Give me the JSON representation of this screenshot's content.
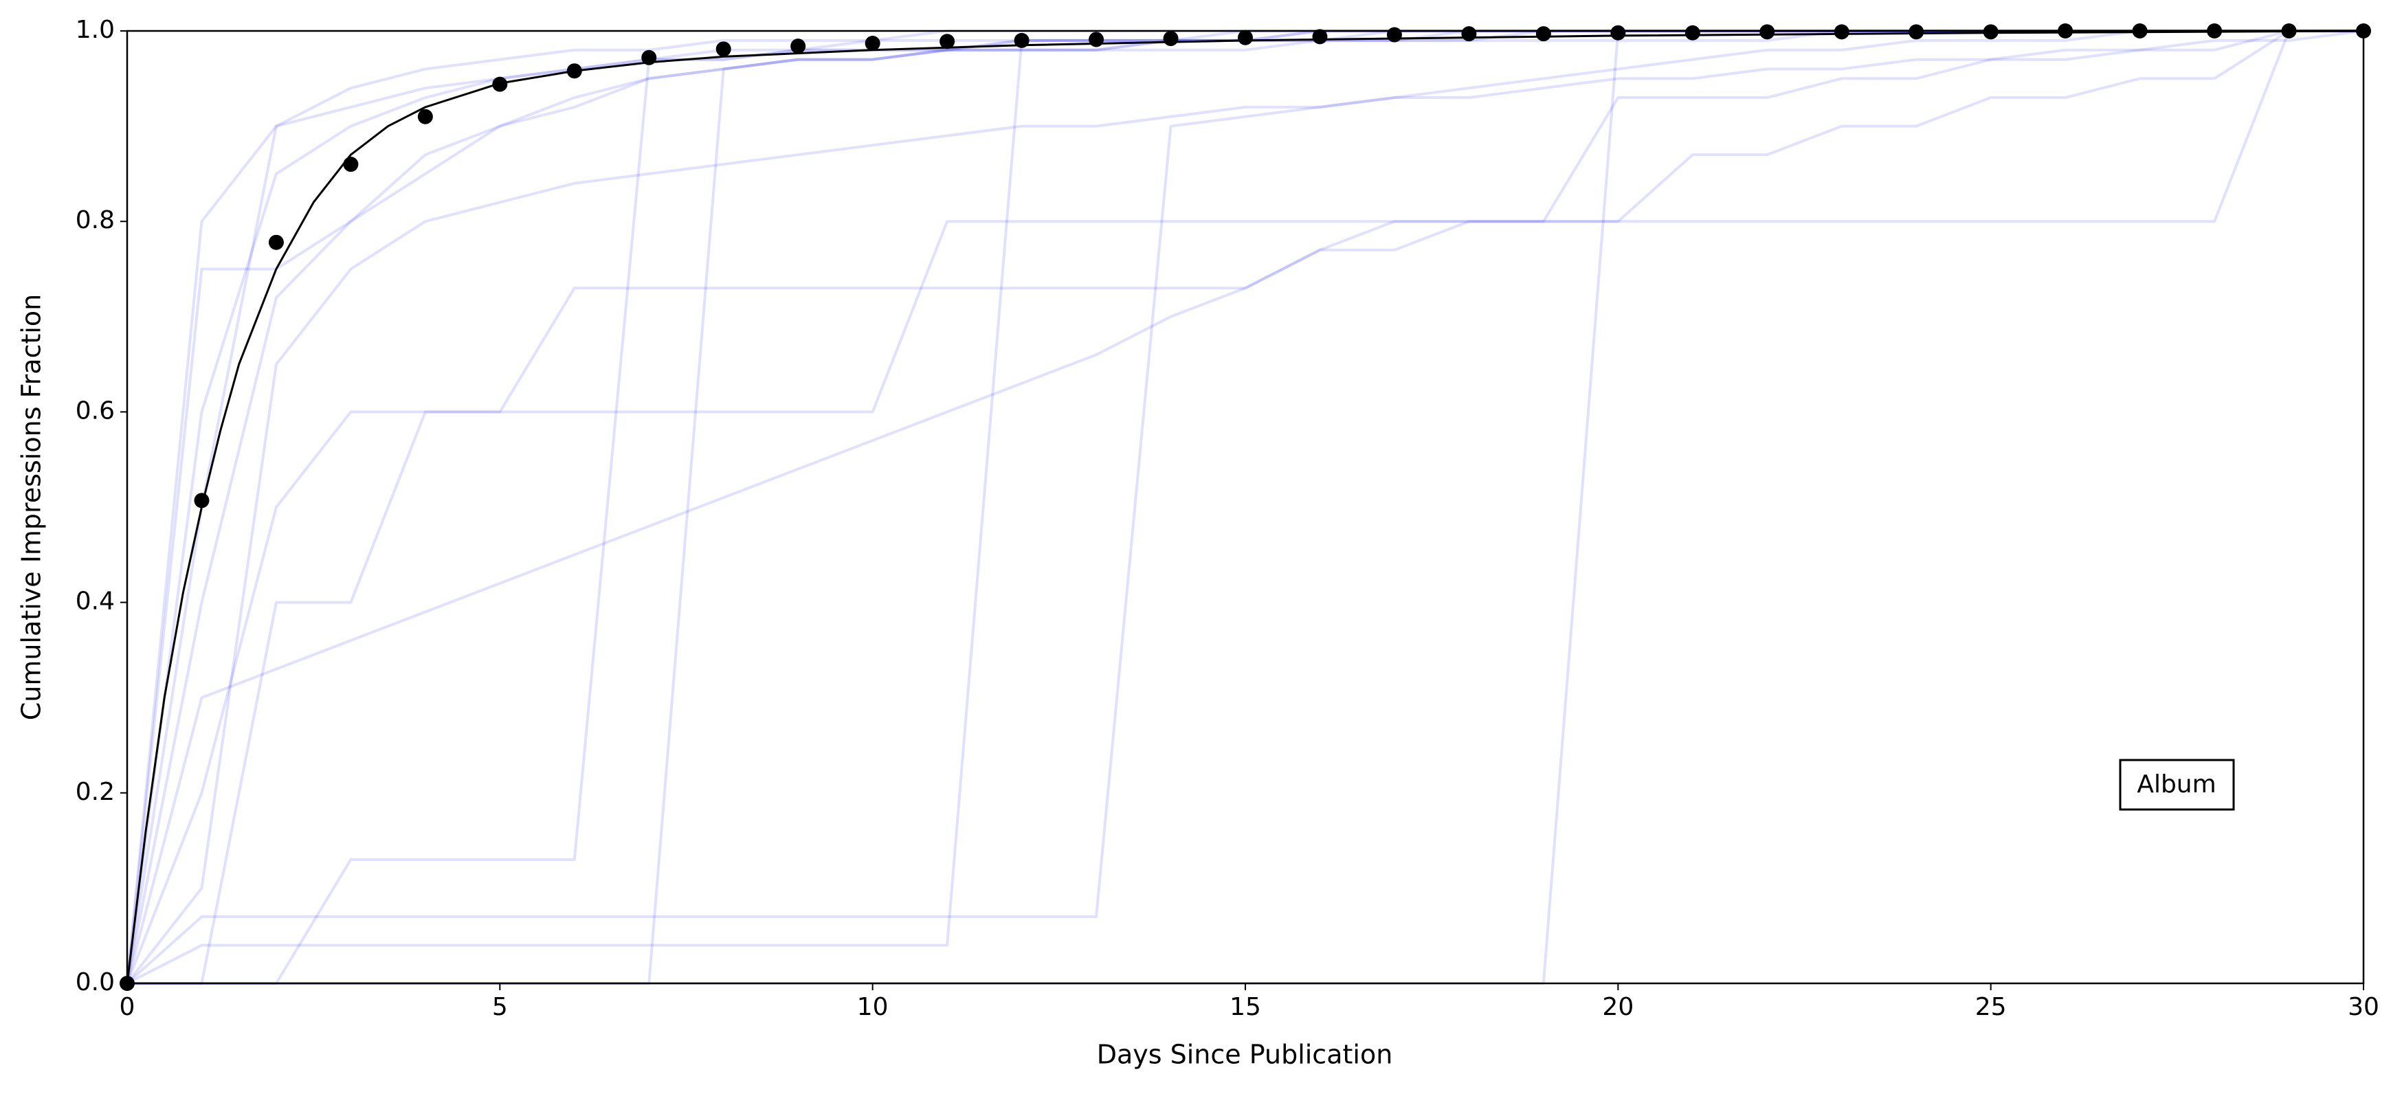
{
  "chart_data": {
    "type": "line",
    "xlabel": "Days Since Publication",
    "ylabel": "Cumulative Impressions Fraction",
    "annotation": "Album",
    "xlim": [
      0,
      30
    ],
    "ylim": [
      0,
      1
    ],
    "xticks": [
      0,
      5,
      10,
      15,
      20,
      25,
      30
    ],
    "yticks": [
      {
        "value": 0,
        "label": "0.0"
      },
      {
        "value": 0.2,
        "label": "0.2"
      },
      {
        "value": 0.4,
        "label": "0.4"
      },
      {
        "value": 0.6,
        "label": "0.6"
      },
      {
        "value": 0.8,
        "label": "0.8"
      },
      {
        "value": 1,
        "label": "1.0"
      }
    ],
    "x": [
      0,
      1,
      2,
      3,
      4,
      5,
      6,
      7,
      8,
      9,
      10,
      11,
      12,
      13,
      14,
      15,
      16,
      17,
      18,
      19,
      20,
      21,
      22,
      23,
      24,
      25,
      26,
      27,
      28,
      29,
      30
    ],
    "series": [
      {
        "color": "#0000ff",
        "opacity": 0.12,
        "style": "line",
        "values": [
          0,
          0.75,
          0.75,
          0.8,
          0.85,
          0.9,
          0.92,
          0.95,
          0.96,
          0.97,
          0.97,
          0.98,
          0.98,
          0.98,
          0.99,
          0.99,
          0.99,
          0.99,
          1,
          1,
          1,
          1,
          1,
          1,
          1,
          1,
          1,
          1,
          1,
          1,
          1
        ]
      },
      {
        "color": "#0000ff",
        "opacity": 0.12,
        "style": "line",
        "values": [
          0,
          0.6,
          0.85,
          0.9,
          0.93,
          0.95,
          0.96,
          0.97,
          0.98,
          0.98,
          0.99,
          0.99,
          0.99,
          0.99,
          0.99,
          1,
          1,
          1,
          1,
          1,
          1,
          1,
          1,
          1,
          1,
          1,
          1,
          1,
          1,
          1,
          1
        ]
      },
      {
        "color": "#0000ff",
        "opacity": 0.12,
        "style": "line",
        "values": [
          0,
          0.4,
          0.72,
          0.8,
          0.87,
          0.9,
          0.93,
          0.95,
          0.96,
          0.97,
          0.97,
          0.98,
          0.98,
          0.98,
          0.98,
          0.98,
          0.99,
          0.99,
          0.99,
          0.99,
          0.99,
          0.99,
          0.99,
          1,
          1,
          1,
          1,
          1,
          1,
          1,
          1
        ]
      },
      {
        "color": "#0000ff",
        "opacity": 0.12,
        "style": "line",
        "values": [
          0,
          0.3,
          0.33,
          0.36,
          0.39,
          0.42,
          0.45,
          0.48,
          0.51,
          0.54,
          0.57,
          0.6,
          0.63,
          0.66,
          0.7,
          0.73,
          0.77,
          0.8,
          0.8,
          0.8,
          0.8,
          0.8,
          0.8,
          0.8,
          0.8,
          0.8,
          0.8,
          0.8,
          0.8,
          1,
          1
        ]
      },
      {
        "color": "#0000ff",
        "opacity": 0.12,
        "style": "line",
        "values": [
          0,
          0,
          0,
          0,
          0,
          0,
          0,
          0,
          0,
          0,
          0,
          0,
          0,
          0,
          0,
          0,
          0,
          0,
          0,
          0,
          1,
          1,
          1,
          1,
          1,
          1,
          1,
          1,
          1,
          1,
          1
        ]
      },
      {
        "color": "#0000ff",
        "opacity": 0.12,
        "style": "line",
        "values": [
          0,
          0,
          0,
          0,
          0,
          0,
          0,
          0,
          0.96,
          0.97,
          0.97,
          0.98,
          0.98,
          0.98,
          0.99,
          0.99,
          0.99,
          0.99,
          0.99,
          1,
          1,
          1,
          1,
          1,
          1,
          1,
          1,
          1,
          1,
          1,
          1
        ]
      },
      {
        "color": "#0000ff",
        "opacity": 0.12,
        "style": "line",
        "values": [
          0,
          0.07,
          0.07,
          0.07,
          0.07,
          0.07,
          0.07,
          0.07,
          0.07,
          0.07,
          0.07,
          0.07,
          0.07,
          0.07,
          0.9,
          0.91,
          0.92,
          0.93,
          0.94,
          0.95,
          0.96,
          0.97,
          0.98,
          0.98,
          0.99,
          0.99,
          0.99,
          1,
          1,
          1,
          1
        ]
      },
      {
        "color": "#0000ff",
        "opacity": 0.12,
        "style": "line",
        "values": [
          0,
          0,
          0,
          0.13,
          0.13,
          0.13,
          0.13,
          0.97,
          0.97,
          0.98,
          0.98,
          0.98,
          0.99,
          0.99,
          0.99,
          0.99,
          1,
          1,
          1,
          1,
          1,
          1,
          1,
          1,
          1,
          1,
          1,
          1,
          1,
          1,
          1
        ]
      },
      {
        "color": "#0000ff",
        "opacity": 0.12,
        "style": "line",
        "values": [
          0,
          0.2,
          0.5,
          0.6,
          0.6,
          0.6,
          0.6,
          0.6,
          0.6,
          0.6,
          0.6,
          0.8,
          0.8,
          0.8,
          0.8,
          0.8,
          0.8,
          0.8,
          0.8,
          0.8,
          0.93,
          0.93,
          0.93,
          0.95,
          0.95,
          0.97,
          0.97,
          0.98,
          0.98,
          1,
          1
        ]
      },
      {
        "color": "#0000ff",
        "opacity": 0.12,
        "style": "line",
        "values": [
          0,
          0.04,
          0.04,
          0.04,
          0.04,
          0.04,
          0.04,
          0.04,
          0.04,
          0.04,
          0.04,
          0.04,
          0.99,
          0.99,
          0.99,
          0.99,
          1,
          1,
          1,
          1,
          1,
          1,
          1,
          1,
          1,
          1,
          1,
          1,
          1,
          1,
          1
        ]
      },
      {
        "color": "#0000ff",
        "opacity": 0.12,
        "style": "line",
        "values": [
          0,
          0.8,
          0.9,
          0.92,
          0.94,
          0.95,
          0.96,
          0.97,
          0.97,
          0.98,
          0.98,
          0.98,
          0.99,
          0.99,
          0.99,
          0.99,
          0.99,
          1,
          1,
          1,
          1,
          1,
          1,
          1,
          1,
          1,
          1,
          1,
          1,
          1,
          1
        ]
      },
      {
        "color": "#0000ff",
        "opacity": 0.12,
        "style": "line",
        "values": [
          0,
          0,
          0.4,
          0.4,
          0.6,
          0.6,
          0.73,
          0.73,
          0.73,
          0.73,
          0.73,
          0.73,
          0.73,
          0.73,
          0.73,
          0.73,
          0.77,
          0.77,
          0.8,
          0.8,
          0.8,
          0.87,
          0.87,
          0.9,
          0.9,
          0.93,
          0.93,
          0.95,
          0.95,
          1,
          1
        ]
      },
      {
        "color": "#0000ff",
        "opacity": 0.12,
        "style": "line",
        "values": [
          0,
          0.5,
          0.9,
          0.94,
          0.96,
          0.97,
          0.98,
          0.98,
          0.99,
          0.99,
          0.99,
          1,
          1,
          1,
          1,
          1,
          1,
          1,
          1,
          1,
          1,
          1,
          1,
          1,
          1,
          1,
          1,
          1,
          1,
          1,
          1
        ]
      },
      {
        "color": "#0000ff",
        "opacity": 0.12,
        "style": "line",
        "values": [
          0,
          0.1,
          0.65,
          0.75,
          0.8,
          0.82,
          0.84,
          0.85,
          0.86,
          0.87,
          0.88,
          0.89,
          0.9,
          0.9,
          0.91,
          0.92,
          0.92,
          0.93,
          0.93,
          0.94,
          0.95,
          0.95,
          0.96,
          0.96,
          0.97,
          0.97,
          0.98,
          0.98,
          0.99,
          0.99,
          1
        ]
      },
      {
        "color": "#000000",
        "opacity": 1,
        "style": "line",
        "width": 3,
        "x": [
          0,
          0.25,
          0.5,
          0.75,
          1,
          1.25,
          1.5,
          1.75,
          2,
          2.5,
          3,
          3.5,
          4,
          5,
          6,
          7,
          8,
          10,
          12,
          15,
          20,
          25,
          30
        ],
        "values": [
          0,
          0.16,
          0.3,
          0.41,
          0.5,
          0.58,
          0.65,
          0.7,
          0.75,
          0.82,
          0.87,
          0.9,
          0.92,
          0.945,
          0.958,
          0.967,
          0.973,
          0.98,
          0.985,
          0.99,
          0.995,
          0.998,
          1
        ]
      },
      {
        "color": "#000000",
        "opacity": 1,
        "style": "points",
        "values": [
          0,
          0.507,
          0.778,
          0.86,
          0.91,
          0.944,
          0.958,
          0.972,
          0.981,
          0.984,
          0.987,
          0.989,
          0.99,
          0.991,
          0.992,
          0.993,
          0.994,
          0.996,
          0.997,
          0.997,
          0.998,
          0.998,
          0.999,
          0.999,
          0.999,
          0.999,
          1,
          1,
          1,
          1,
          1
        ]
      }
    ]
  }
}
